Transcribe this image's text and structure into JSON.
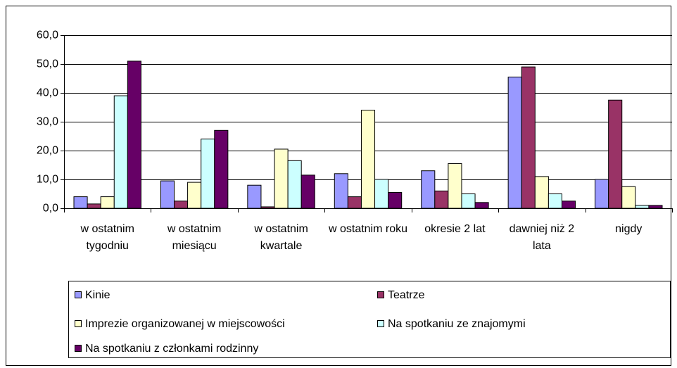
{
  "chart_data": {
    "type": "bar",
    "categories": [
      "w ostatnim tygodniu",
      "w ostatnim miesiącu",
      "w ostatnim kwartale",
      "w ostatnim roku",
      "okresie 2 lat",
      "dawniej niż 2 lata",
      "nigdy"
    ],
    "series": [
      {
        "name": "Kinie",
        "color": "#9999ff",
        "values": [
          4.0,
          9.5,
          8.0,
          12.0,
          13.0,
          45.5,
          10.0
        ]
      },
      {
        "name": "Teatrze",
        "color": "#993366",
        "values": [
          1.5,
          2.5,
          0.5,
          4.0,
          6.0,
          49.0,
          37.5
        ]
      },
      {
        "name": "Imprezie organizowanej w miejscowości",
        "color": "#ffffcc",
        "values": [
          4.0,
          9.0,
          20.5,
          34.0,
          15.5,
          11.0,
          7.5
        ]
      },
      {
        "name": "Na spotkaniu ze znajomymi",
        "color": "#ccffff",
        "values": [
          39.0,
          24.0,
          16.5,
          10.0,
          5.0,
          5.0,
          1.0
        ]
      },
      {
        "name": "Na spotkaniu z członkami rodzinny",
        "color": "#660066",
        "values": [
          51.0,
          27.0,
          11.5,
          5.5,
          2.0,
          2.5,
          1.0
        ]
      }
    ],
    "ylim": [
      0,
      60
    ],
    "yticks": [
      {
        "value": 0,
        "label": "0,0"
      },
      {
        "value": 10,
        "label": "10,0"
      },
      {
        "value": 20,
        "label": "20,0"
      },
      {
        "value": 30,
        "label": "30,0"
      },
      {
        "value": 40,
        "label": "40,0"
      },
      {
        "value": 50,
        "label": "50,0"
      },
      {
        "value": 60,
        "label": "60,0"
      }
    ],
    "grid": true,
    "legend": "bottom"
  }
}
